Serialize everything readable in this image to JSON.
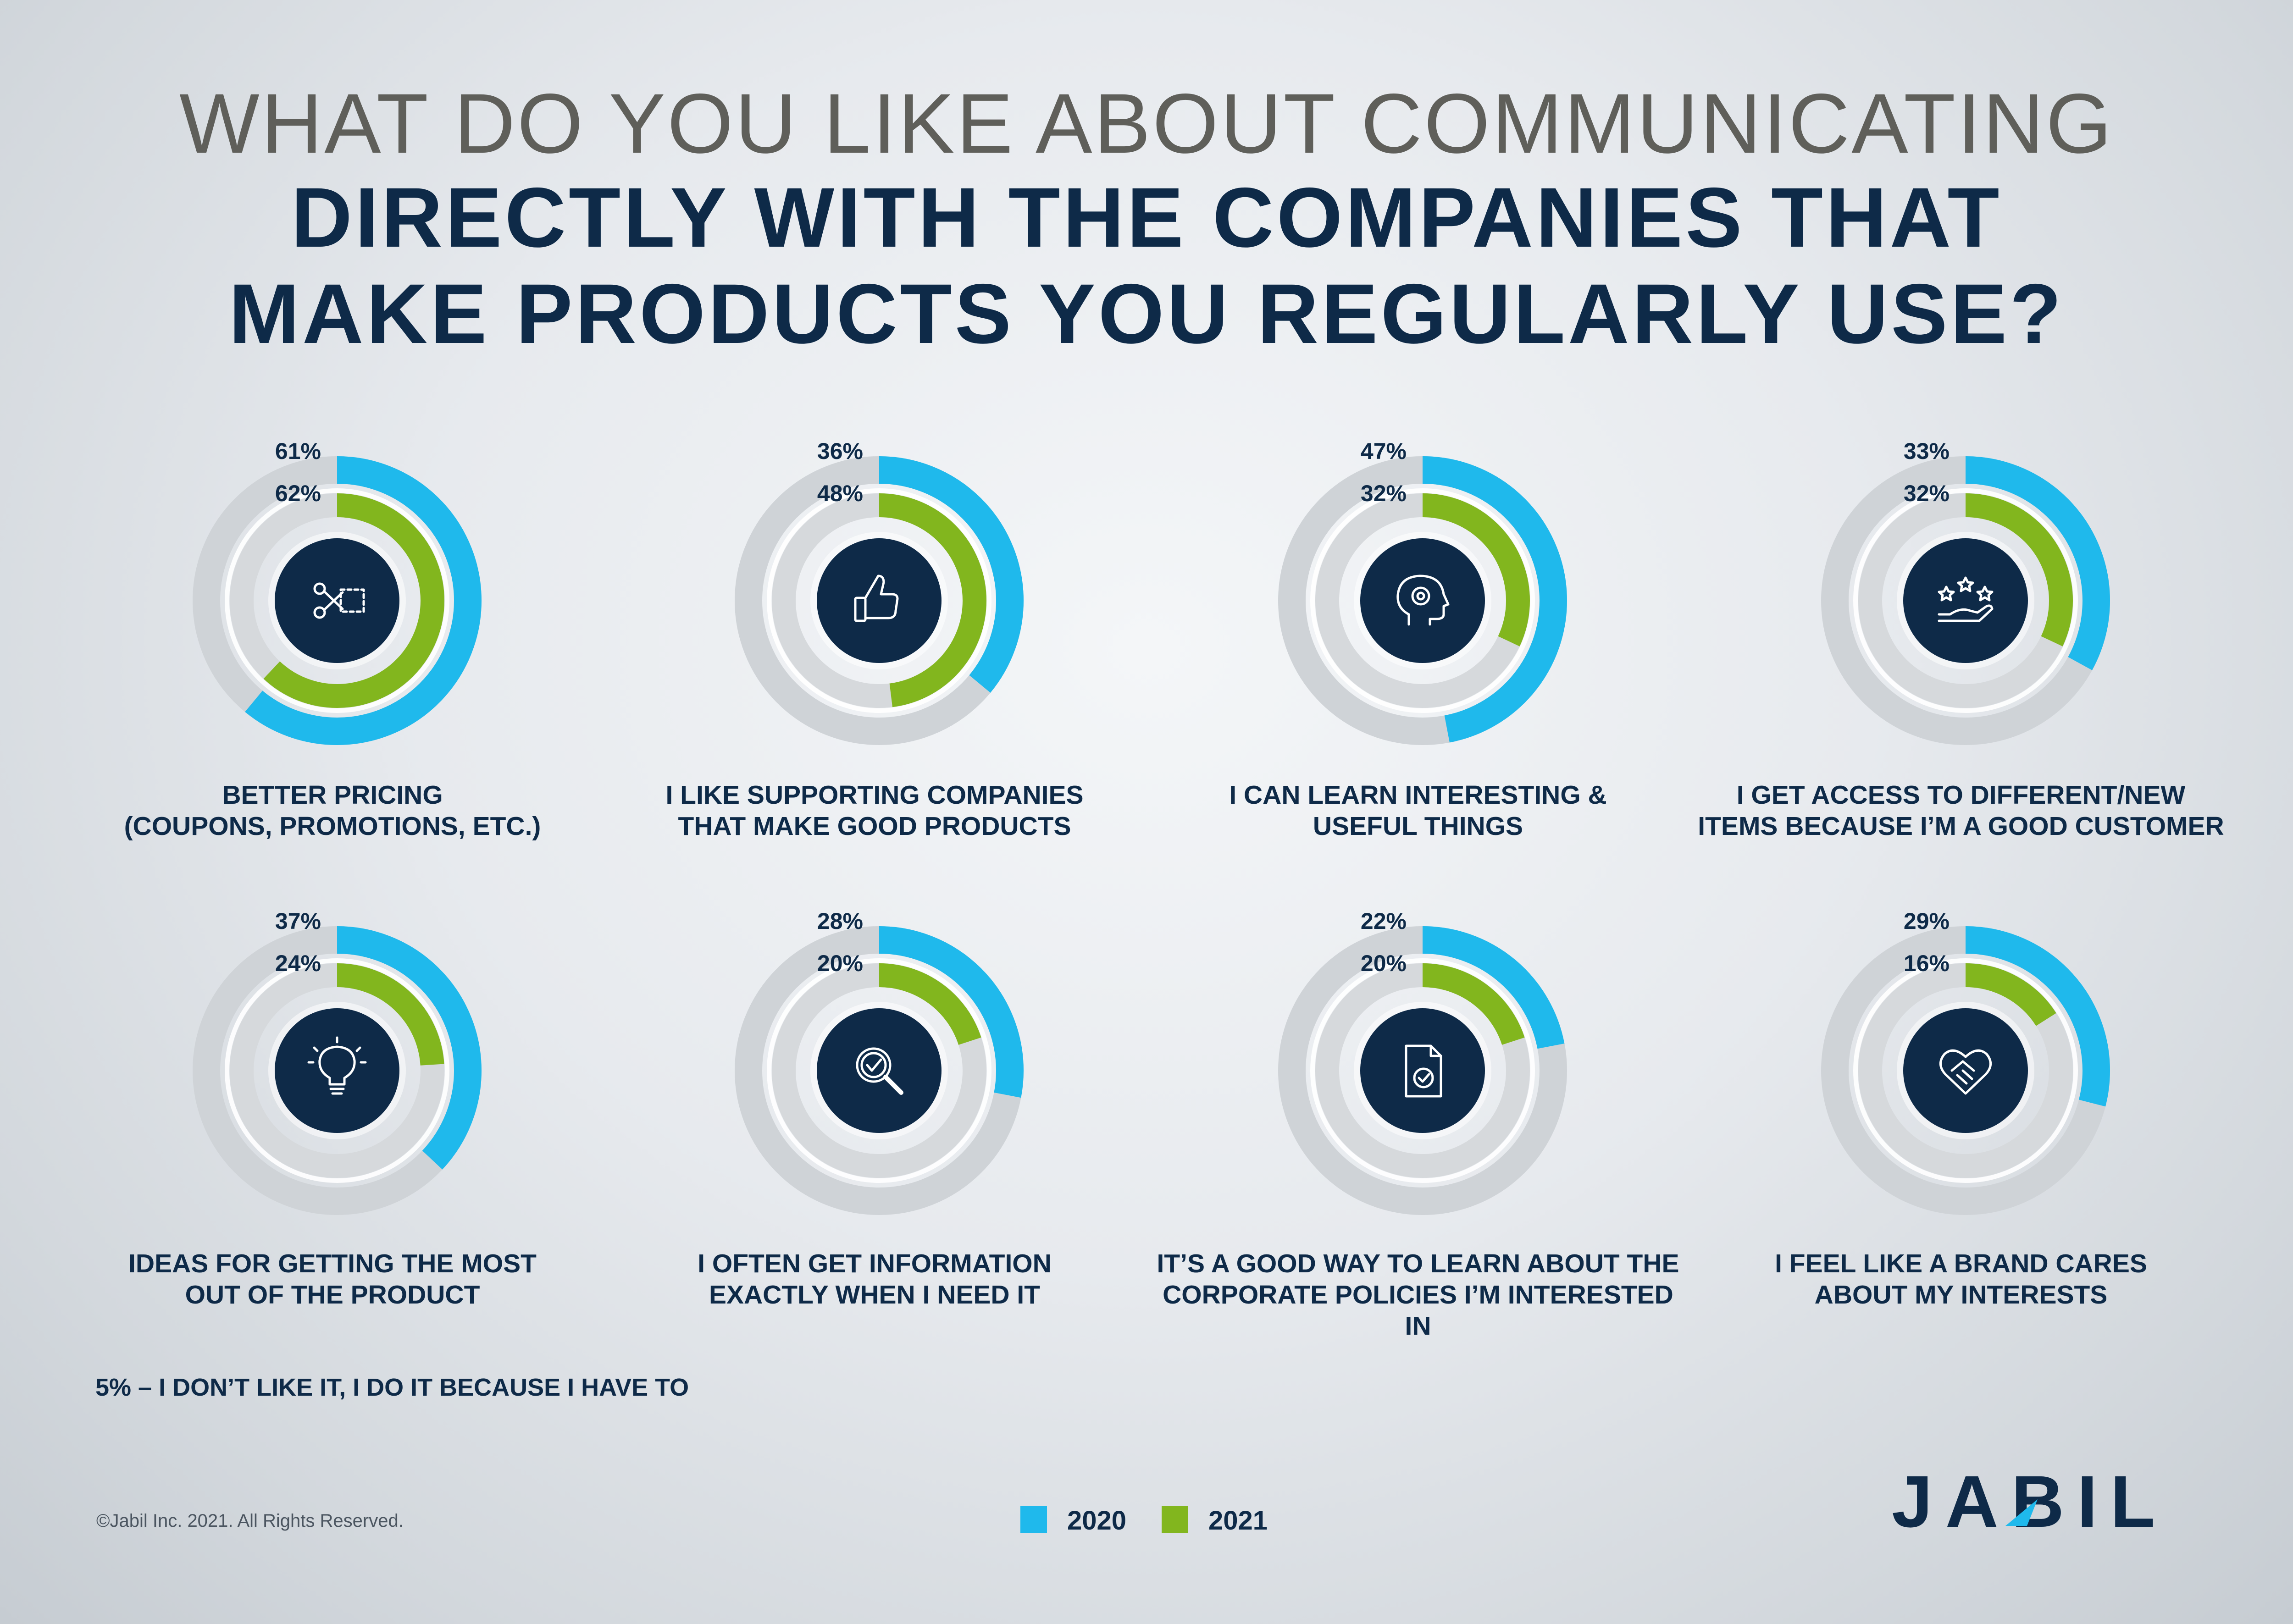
{
  "title": {
    "line1": "WHAT DO YOU LIKE ABOUT COMMUNICATING",
    "line2": "DIRECTLY WITH THE COMPANIES THAT",
    "line3": "MAKE PRODUCTS YOU REGULARLY USE?"
  },
  "colors": {
    "series_2020": "#1fb9ec",
    "series_2021": "#82b61e",
    "navy": "#0e2a48",
    "track": "#cfd3d7"
  },
  "chart_data": [
    {
      "type": "donut",
      "label_line1": "BETTER PRICING",
      "label_line2": "(COUPONS, PROMOTIONS, ETC.)",
      "icon": "scissors-coupon-icon",
      "series": [
        {
          "name": "2020",
          "value": 61,
          "display": "61%"
        },
        {
          "name": "2021",
          "value": 62,
          "display": "62%"
        }
      ]
    },
    {
      "type": "donut",
      "label_line1": "I LIKE SUPPORTING COMPANIES",
      "label_line2": "THAT MAKE GOOD PRODUCTS",
      "icon": "thumbs-up-icon",
      "series": [
        {
          "name": "2020",
          "value": 36,
          "display": "36%"
        },
        {
          "name": "2021",
          "value": 48,
          "display": "48%"
        }
      ]
    },
    {
      "type": "donut",
      "label_line1": "I CAN LEARN INTERESTING &",
      "label_line2": "USEFUL THINGS",
      "icon": "head-gear-icon",
      "series": [
        {
          "name": "2020",
          "value": 47,
          "display": "47%"
        },
        {
          "name": "2021",
          "value": 32,
          "display": "32%"
        }
      ]
    },
    {
      "type": "donut",
      "label_line1": "I GET ACCESS TO DIFFERENT/NEW",
      "label_line2": "ITEMS BECAUSE I’M A GOOD CUSTOMER",
      "icon": "hand-stars-icon",
      "series": [
        {
          "name": "2020",
          "value": 33,
          "display": "33%"
        },
        {
          "name": "2021",
          "value": 32,
          "display": "32%"
        }
      ]
    },
    {
      "type": "donut",
      "label_line1": "IDEAS FOR GETTING THE MOST",
      "label_line2": "OUT OF THE PRODUCT",
      "icon": "lightbulb-icon",
      "series": [
        {
          "name": "2020",
          "value": 37,
          "display": "37%"
        },
        {
          "name": "2021",
          "value": 24,
          "display": "24%"
        }
      ]
    },
    {
      "type": "donut",
      "label_line1": "I OFTEN GET INFORMATION",
      "label_line2": "EXACTLY WHEN I NEED IT",
      "icon": "magnifier-check-icon",
      "series": [
        {
          "name": "2020",
          "value": 28,
          "display": "28%"
        },
        {
          "name": "2021",
          "value": 20,
          "display": "20%"
        }
      ]
    },
    {
      "type": "donut",
      "label_line1": "IT’S A GOOD WAY TO LEARN ABOUT THE",
      "label_line2": "CORPORATE POLICIES I’M INTERESTED IN",
      "icon": "document-check-icon",
      "series": [
        {
          "name": "2020",
          "value": 22,
          "display": "22%"
        },
        {
          "name": "2021",
          "value": 20,
          "display": "20%"
        }
      ]
    },
    {
      "type": "donut",
      "label_line1": "I FEEL LIKE A BRAND CARES",
      "label_line2": "ABOUT MY INTERESTS",
      "icon": "heart-handshake-icon",
      "series": [
        {
          "name": "2020",
          "value": 29,
          "display": "29%"
        },
        {
          "name": "2021",
          "value": 16,
          "display": "16%"
        }
      ]
    }
  ],
  "note": "5% – I DON’T LIKE IT, I DO IT BECAUSE I HAVE TO",
  "legend": {
    "item_2020": "2020",
    "item_2021": "2021"
  },
  "copyright": "©Jabil Inc. 2021. All Rights Reserved.",
  "logo_text": "JABIL"
}
